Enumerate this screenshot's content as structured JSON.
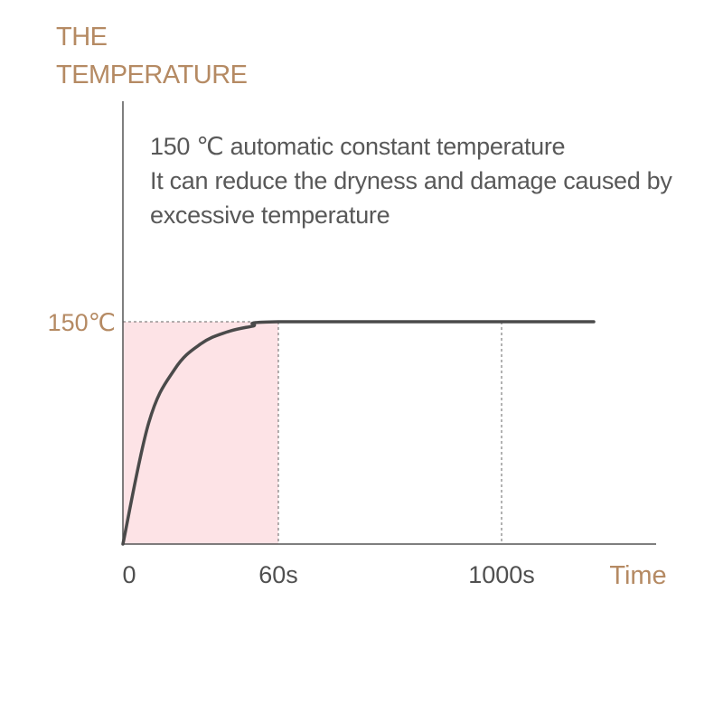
{
  "chart_data": {
    "type": "line",
    "ylabel_lines": [
      "THE",
      "TEMPERATURE"
    ],
    "xlabel": "Time",
    "annotation_lines": [
      "150 ℃ automatic constant temperature",
      "It can reduce the dryness and damage caused by",
      "excessive temperature"
    ],
    "x_ticks": [
      {
        "label": "0",
        "value": 0
      },
      {
        "label": "60s",
        "value": 60
      },
      {
        "label": "1000s",
        "value": 1000
      }
    ],
    "y_ticks": [
      {
        "label": "150℃",
        "value": 150
      }
    ],
    "ylim": [
      0,
      150
    ],
    "series": [
      {
        "values": [
          {
            "x": 0,
            "y": 0
          },
          {
            "x": 10,
            "y": 82
          },
          {
            "x": 20,
            "y": 118
          },
          {
            "x": 30,
            "y": 135
          },
          {
            "x": 40,
            "y": 143
          },
          {
            "x": 50,
            "y": 147
          },
          {
            "x": 60,
            "y": 150
          },
          {
            "x": 1000,
            "y": 150
          },
          {
            "x": 1400,
            "y": 150
          }
        ]
      }
    ],
    "highlight_region": {
      "x_start": 0,
      "x_end": 60,
      "color": "#fde3e6"
    },
    "line_color": "#4a4a4a",
    "axis_color": "#555555",
    "accent_color": "#b58a63"
  }
}
